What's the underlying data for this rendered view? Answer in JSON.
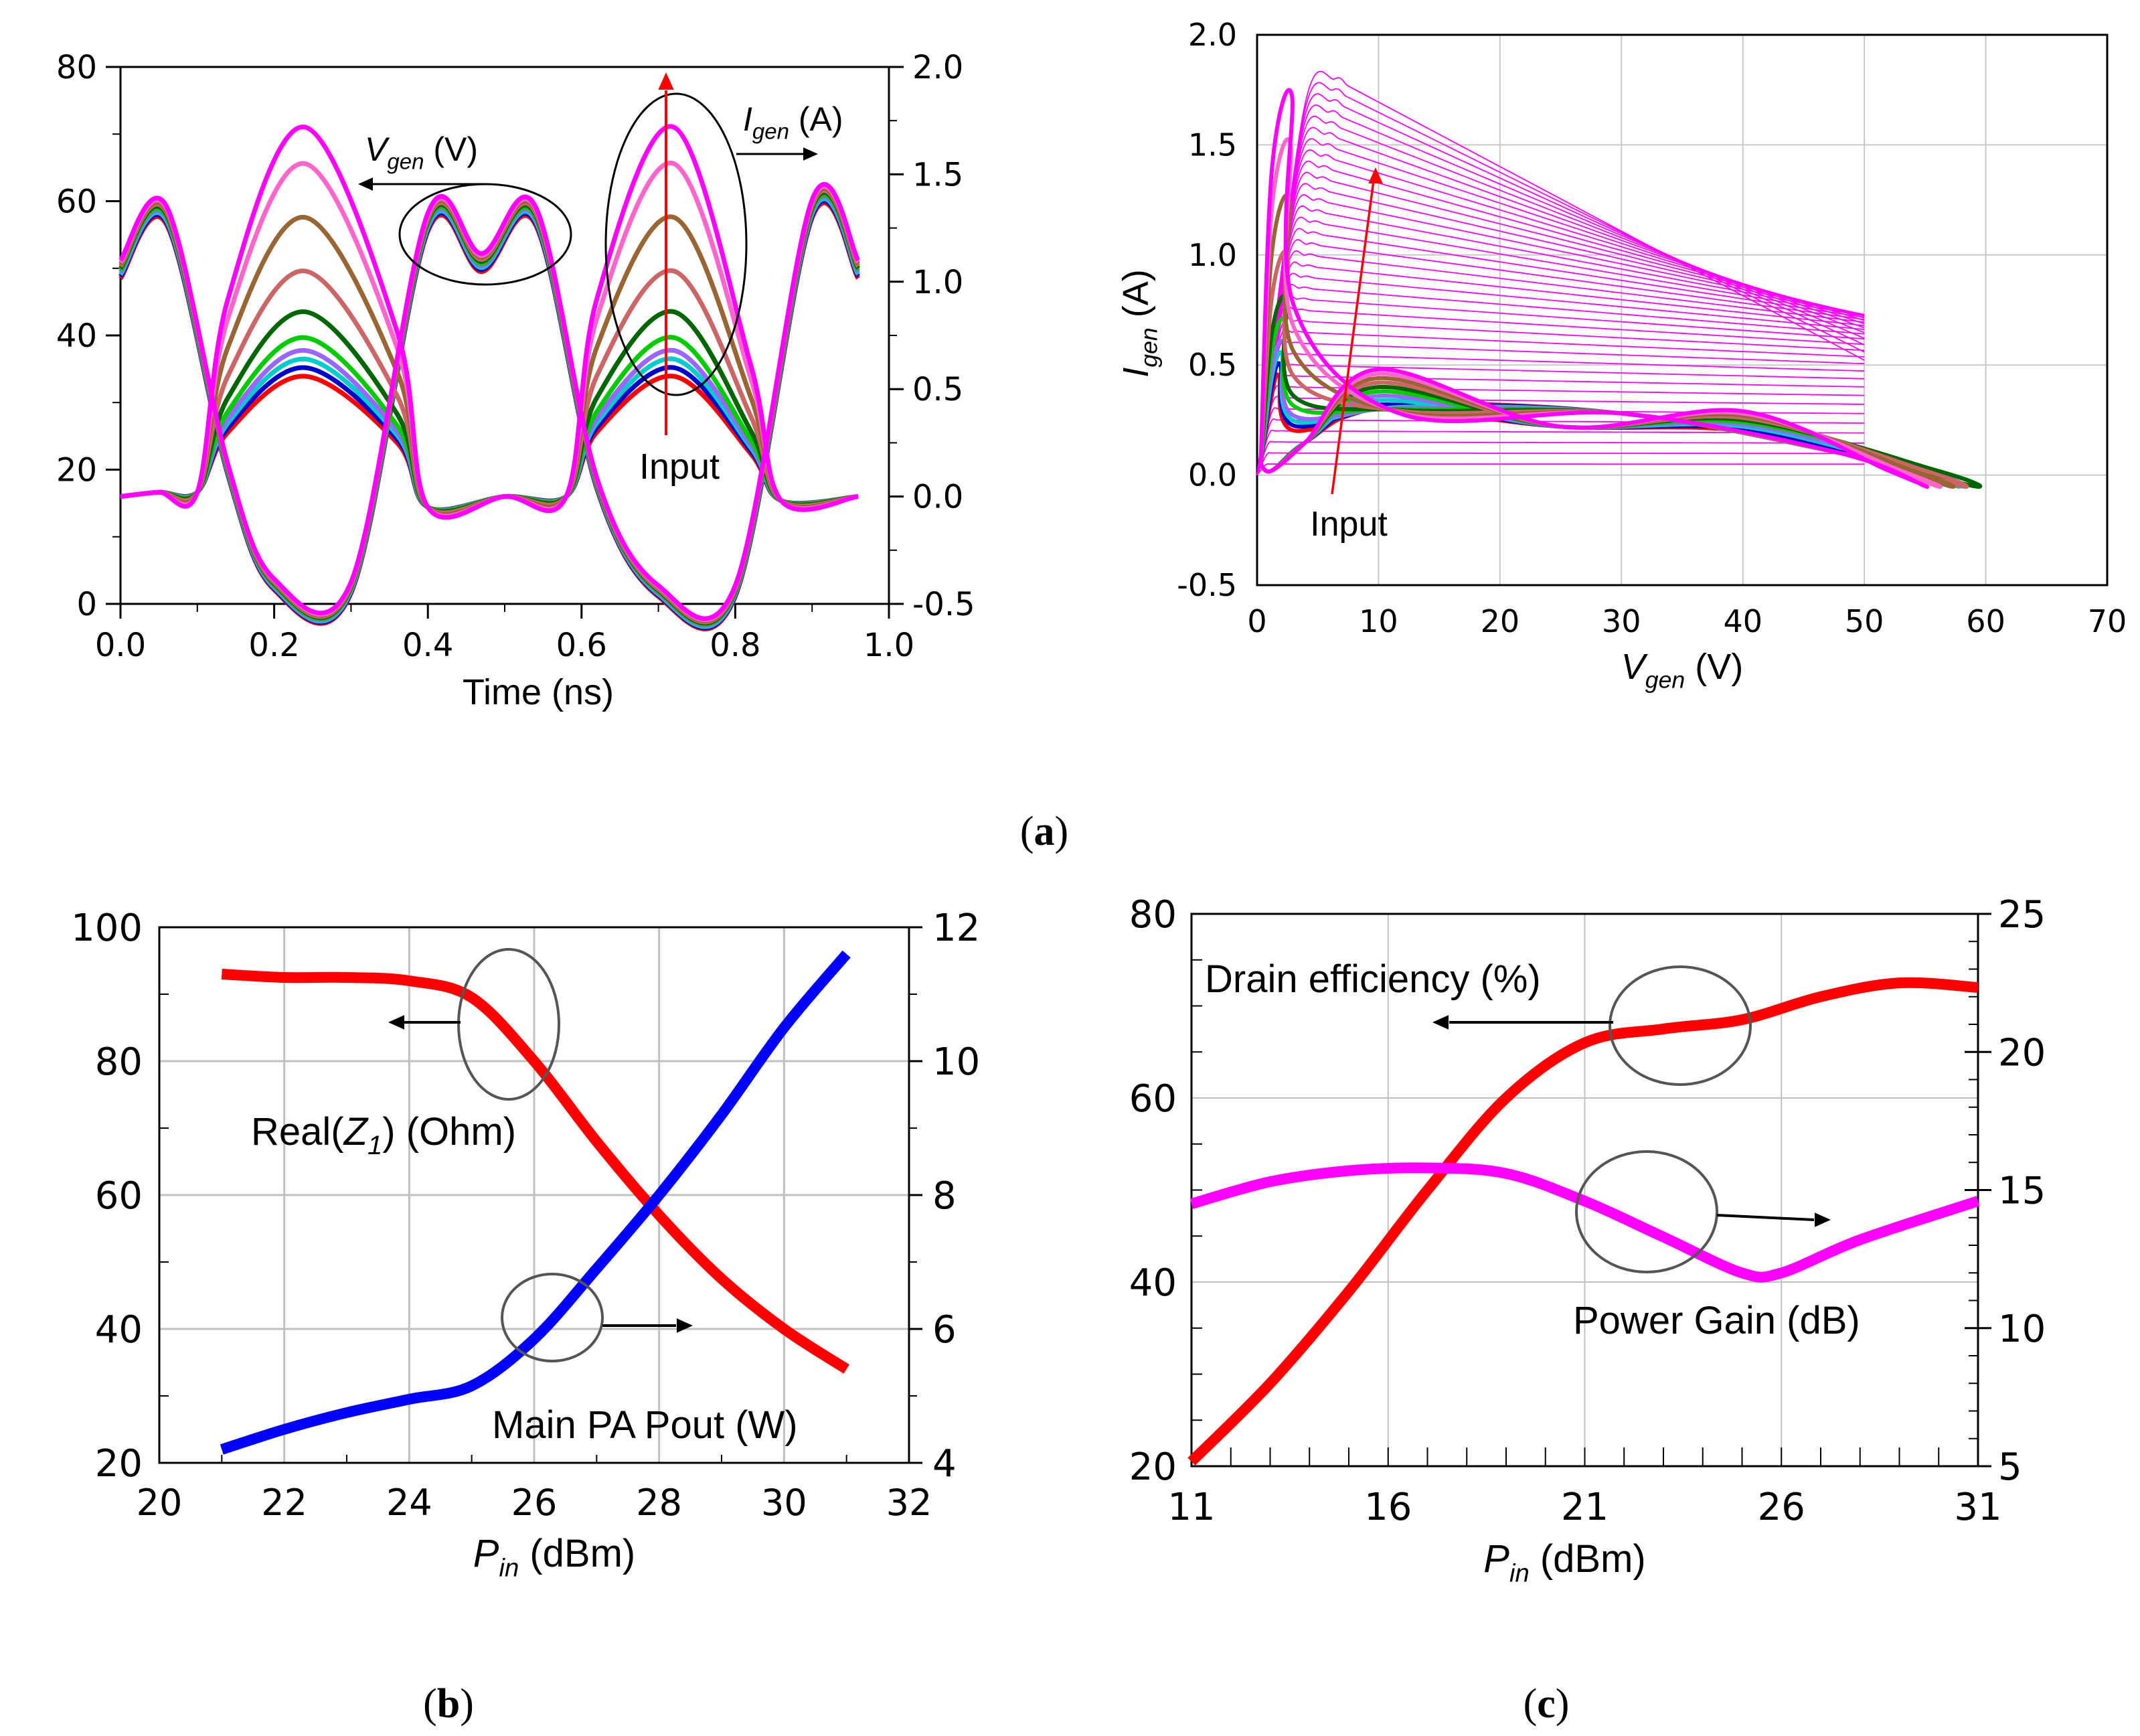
{
  "panel_captions": {
    "a": "a",
    "b": "b",
    "c": "c"
  },
  "chart_data": [
    {
      "id": "a1",
      "type": "line",
      "title": "",
      "xlabel": "Time (ns)",
      "ylabel_left": "V",
      "ylabel_left_sub": "gen",
      "ylabel_left_unit": "(V)",
      "ylabel_right": "I",
      "ylabel_right_sub": "gen",
      "ylabel_right_unit": "(A)",
      "xlim": [
        0,
        1.0
      ],
      "ylim_left": [
        0,
        80
      ],
      "ylim_right": [
        -0.5,
        2.0
      ],
      "xticks": [
        "0.0",
        "0.2",
        "0.4",
        "0.6",
        "0.8",
        "1.0"
      ],
      "yticks_left": [
        "0",
        "20",
        "40",
        "60",
        "80"
      ],
      "yticks_right": [
        "-0.5",
        "0.0",
        "0.5",
        "1.0",
        "1.5",
        "2.0"
      ],
      "annotation": "Input",
      "colors": [
        "#ff0000",
        "#0000cc",
        "#00cccc",
        "#9966ff",
        "#00cc00",
        "#006600",
        "#cc6666",
        "#996633",
        "#ff66cc",
        "#ff00ff"
      ],
      "current_peak_A": [
        0.56,
        0.6,
        0.64,
        0.68,
        0.74,
        0.86,
        1.05,
        1.3,
        1.55,
        1.72
      ],
      "series": [
        {
          "name": "V_gen",
          "axis": "left",
          "points": [
            [
              0.0,
              50
            ],
            [
              0.06,
              58
            ],
            [
              0.14,
              20
            ],
            [
              0.2,
              3
            ],
            [
              0.3,
              2.5
            ],
            [
              0.4,
              57
            ],
            [
              0.47,
              51
            ],
            [
              0.54,
              58
            ],
            [
              0.62,
              18
            ],
            [
              0.7,
              2
            ],
            [
              0.8,
              2
            ],
            [
              0.9,
              59
            ],
            [
              0.96,
              50
            ]
          ]
        },
        {
          "name": "I_gen",
          "axis": "right",
          "points": [
            [
              0.0,
              0.0
            ],
            [
              0.05,
              0.02
            ],
            [
              0.1,
              0.02
            ],
            [
              0.14,
              0.3
            ],
            [
              0.24,
              0.56
            ],
            [
              0.36,
              0.25
            ],
            [
              0.4,
              -0.05
            ],
            [
              0.5,
              0.0
            ],
            [
              0.58,
              0.0
            ],
            [
              0.62,
              0.3
            ],
            [
              0.72,
              0.56
            ],
            [
              0.82,
              0.2
            ],
            [
              0.86,
              -0.02
            ],
            [
              0.96,
              0.0
            ]
          ]
        }
      ]
    },
    {
      "id": "a2",
      "type": "line",
      "title": "",
      "xlabel": "V",
      "xlabel_sub": "gen",
      "xlabel_unit": "(V)",
      "ylabel": "I",
      "ylabel_sub": "gen",
      "ylabel_unit": "(A)",
      "xlim": [
        0,
        70
      ],
      "ylim": [
        -0.5,
        2.0
      ],
      "xticks": [
        "0",
        "10",
        "20",
        "30",
        "40",
        "50",
        "60",
        "70"
      ],
      "yticks": [
        "-0.5",
        "0.0",
        "0.5",
        "1.0",
        "1.5",
        "2.0"
      ],
      "annotation": "Input",
      "iv_curve_currents_A": [
        0.05,
        0.1,
        0.15,
        0.2,
        0.25,
        0.3,
        0.35,
        0.4,
        0.45,
        0.5,
        0.55,
        0.6,
        0.65,
        0.7,
        0.75,
        0.8,
        0.85,
        0.9,
        0.95,
        1.0,
        1.05,
        1.1,
        1.15,
        1.2,
        1.25,
        1.3,
        1.35,
        1.4,
        1.45,
        1.5,
        1.55,
        1.6,
        1.65,
        1.7,
        1.75,
        1.8
      ],
      "iv_curve_end_V": 50,
      "colors": [
        "#ff0000",
        "#0000cc",
        "#00cccc",
        "#9966ff",
        "#00cc00",
        "#006600",
        "#cc6666",
        "#996633",
        "#ff66cc",
        "#ff00ff"
      ],
      "loop_peak_A": [
        0.45,
        0.5,
        0.55,
        0.6,
        0.7,
        0.8,
        1.0,
        1.25,
        1.5,
        1.72
      ],
      "loop_end_V": [
        56,
        57,
        57.5,
        58,
        59,
        59,
        58,
        57,
        56,
        55
      ]
    },
    {
      "id": "b",
      "type": "line",
      "title": "",
      "xlabel": "P",
      "xlabel_sub": "in",
      "xlabel_unit": "(dBm)",
      "xlim": [
        20,
        32
      ],
      "ylim_left": [
        20,
        100
      ],
      "ylim_right": [
        4,
        12
      ],
      "xticks": [
        "20",
        "22",
        "24",
        "26",
        "28",
        "30",
        "32"
      ],
      "yticks_left": [
        "20",
        "40",
        "60",
        "80",
        "100"
      ],
      "yticks_right": [
        "4",
        "6",
        "8",
        "10",
        "12"
      ],
      "series": [
        {
          "name": "Real(Z1) (Ohm)",
          "label_prefix": "Real(",
          "label_sym": "Z",
          "label_sub": "1",
          "label_suffix": ") (Ohm)",
          "axis": "left",
          "color": "#ff0000",
          "x": [
            21,
            22,
            23,
            24,
            25,
            26,
            27,
            28,
            29,
            30,
            31
          ],
          "y": [
            93,
            92.5,
            92.5,
            92,
            89.5,
            80,
            68,
            57,
            47.5,
            40,
            34
          ]
        },
        {
          "name": "Main PA Pout (W)",
          "axis": "right",
          "color": "#0000ff",
          "x": [
            21,
            22,
            23,
            24,
            25,
            26,
            27,
            28,
            29,
            30,
            31
          ],
          "y": [
            4.2,
            4.5,
            4.75,
            4.95,
            5.15,
            5.85,
            6.9,
            8.0,
            9.2,
            10.5,
            11.6
          ]
        }
      ]
    },
    {
      "id": "c",
      "type": "line",
      "title": "",
      "xlabel": "P",
      "xlabel_sub": "in",
      "xlabel_unit": "(dBm)",
      "xlim": [
        11,
        31
      ],
      "ylim_left": [
        20,
        80
      ],
      "ylim_right": [
        5,
        25
      ],
      "xticks": [
        "11",
        "16",
        "21",
        "26",
        "31"
      ],
      "yticks_left": [
        "20",
        "40",
        "60",
        "80"
      ],
      "yticks_right": [
        "5",
        "10",
        "15",
        "20",
        "25"
      ],
      "series": [
        {
          "name": "Drain efficiency (%)",
          "axis": "left",
          "color": "#ff0000",
          "x": [
            11,
            13,
            15,
            17,
            19,
            21,
            23,
            25,
            27,
            29,
            31
          ],
          "y": [
            20.5,
            29,
            39,
            50,
            60,
            66,
            67.5,
            68.5,
            71,
            72.5,
            72
          ]
        },
        {
          "name": "Power Gain (dB)",
          "axis": "right",
          "color": "#ff00ff",
          "x": [
            11,
            13,
            15,
            17,
            19,
            21,
            23,
            25,
            26,
            28,
            31
          ],
          "y": [
            14.5,
            15.3,
            15.7,
            15.8,
            15.6,
            14.6,
            13.3,
            12.0,
            12.0,
            13.2,
            14.6
          ]
        }
      ]
    }
  ]
}
